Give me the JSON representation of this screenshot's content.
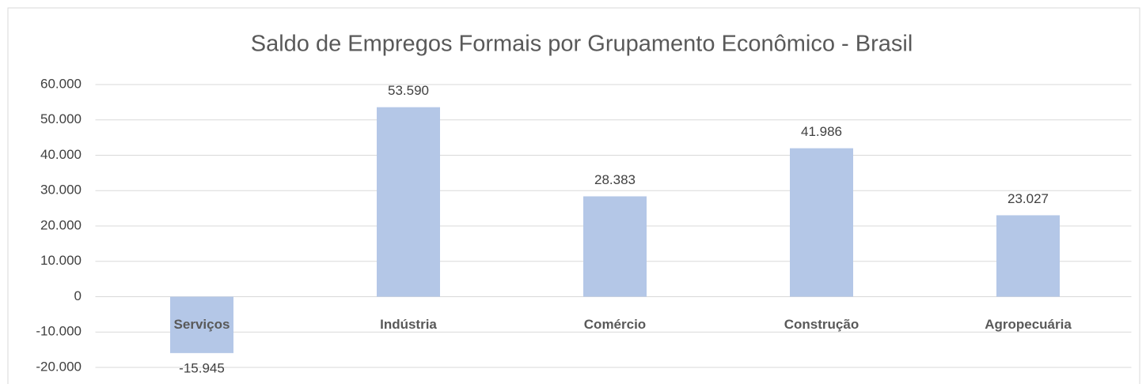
{
  "chart_data": {
    "type": "bar",
    "title": "Saldo de Empregos Formais por Grupamento Econômico - Brasil",
    "categories": [
      "Serviços",
      "Indústria",
      "Comércio",
      "Construção",
      "Agropecuária"
    ],
    "values": [
      -15945,
      53590,
      28383,
      41986,
      23027
    ],
    "value_labels": [
      "-15.945",
      "53.590",
      "28.383",
      "41.986",
      "23.027"
    ],
    "color": "#b4c7e7",
    "ylim": [
      -20000,
      60000
    ],
    "yticks": [
      {
        "value": -20000,
        "label": "-20.000"
      },
      {
        "value": -10000,
        "label": "-10.000"
      },
      0,
      {
        "value": 10000,
        "label": "10.000"
      },
      {
        "value": 20000,
        "label": "20.000"
      },
      {
        "value": 30000,
        "label": "30.000"
      },
      {
        "value": 40000,
        "label": "40.000"
      },
      {
        "value": 50000,
        "label": "50.000"
      },
      {
        "value": 60000,
        "label": "60.000"
      }
    ],
    "grid": true
  }
}
